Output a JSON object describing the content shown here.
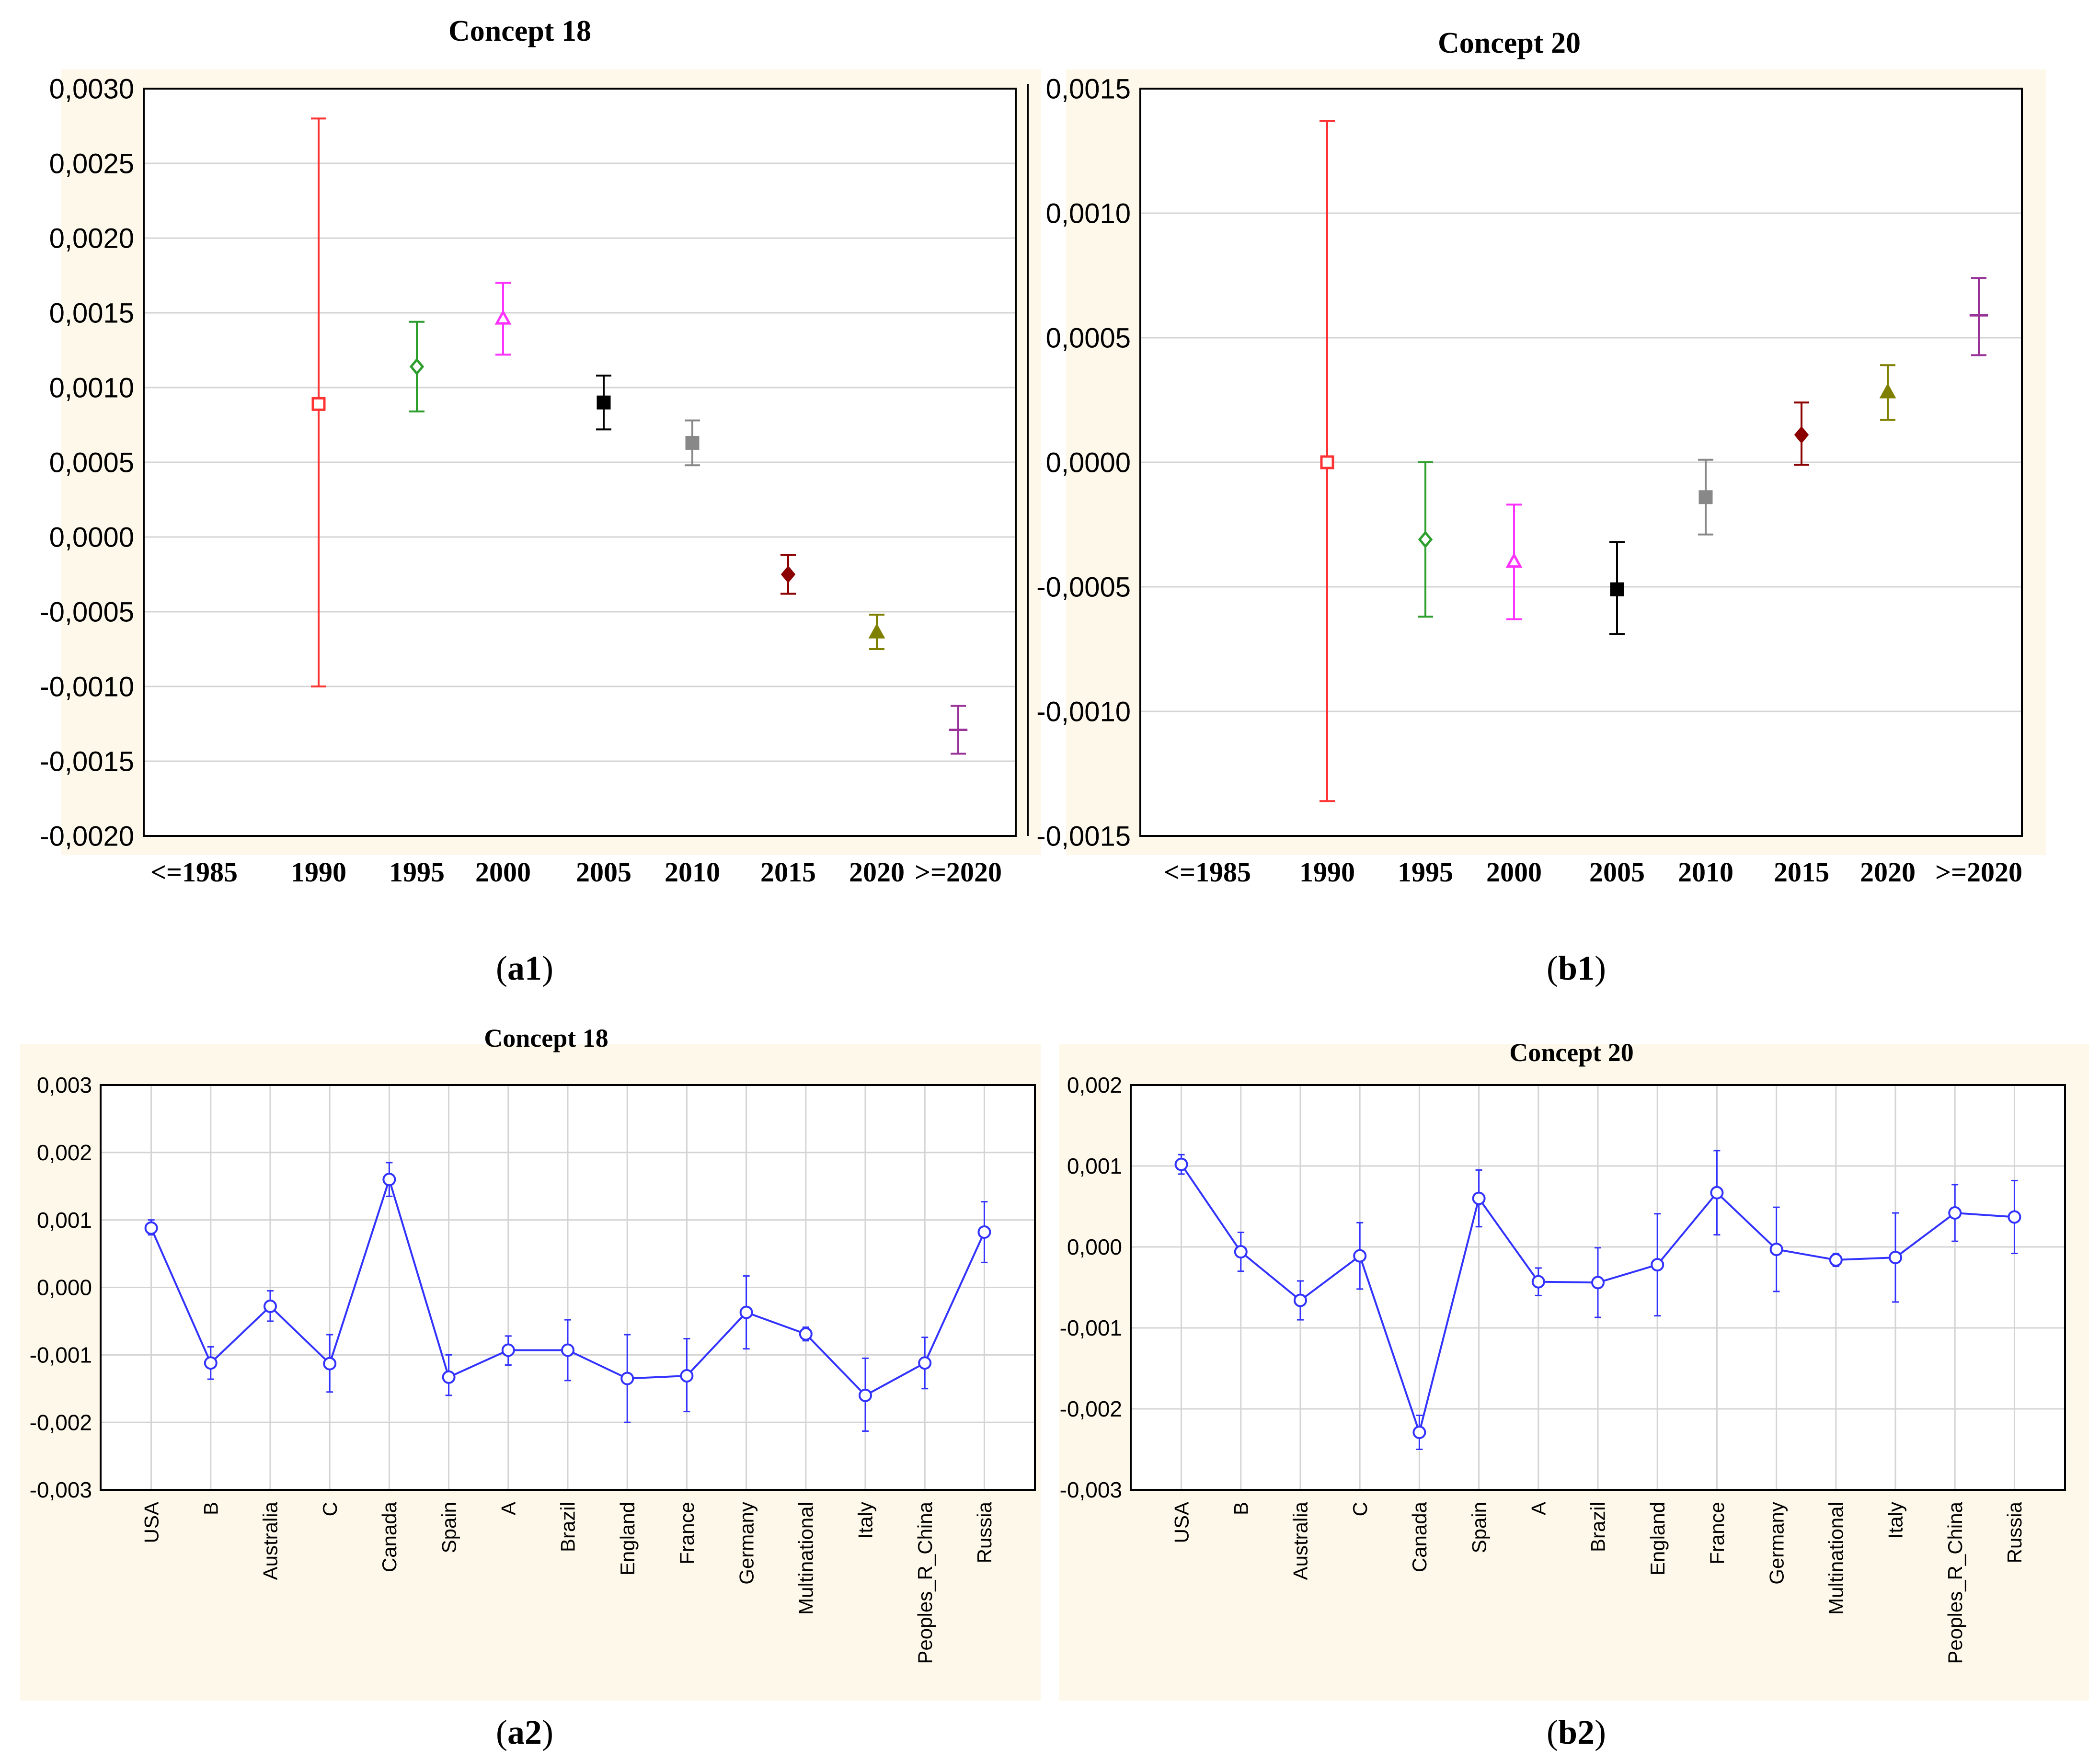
{
  "chart_data": [
    {
      "id": "a1",
      "type": "scatter",
      "title": "Concept 18",
      "caption_prefix": "a",
      "caption_suffix": "1",
      "categories": [
        "<=1985",
        "1990",
        "1995",
        "2000",
        "2005",
        "2010",
        "2015",
        "2020",
        ">=2020"
      ],
      "ylim": [
        -0.002,
        0.003
      ],
      "yticks": [
        "0,0030",
        "0,0025",
        "0,0020",
        "0,0015",
        "0,0010",
        "0,0005",
        "0,0000",
        "-0,0005",
        "-0,0010",
        "-0,0015",
        "-0,0020"
      ],
      "grid": true,
      "points": [
        {
          "category": "1990",
          "mean": 0.00089,
          "lower": -0.001,
          "upper": 0.0028,
          "color": "#ff3333",
          "marker": "open-square"
        },
        {
          "category": "1995",
          "mean": 0.00114,
          "lower": 0.00084,
          "upper": 0.00144,
          "color": "#2e9e2e",
          "marker": "open-diamond"
        },
        {
          "category": "2000",
          "mean": 0.00146,
          "lower": 0.00122,
          "upper": 0.0017,
          "color": "#ff33ff",
          "marker": "open-triangle"
        },
        {
          "category": "2005",
          "mean": 0.0009,
          "lower": 0.00072,
          "upper": 0.00108,
          "color": "#000000",
          "marker": "filled-square"
        },
        {
          "category": "2010",
          "mean": 0.00063,
          "lower": 0.00048,
          "upper": 0.00078,
          "color": "#888888",
          "marker": "filled-square"
        },
        {
          "category": "2015",
          "mean": -0.00025,
          "lower": -0.00038,
          "upper": -0.00012,
          "color": "#8b0000",
          "marker": "filled-diamond"
        },
        {
          "category": "2020",
          "mean": -0.00064,
          "lower": -0.00075,
          "upper": -0.00052,
          "color": "#808000",
          "marker": "filled-triangle"
        },
        {
          "category": ">=2020",
          "mean": -0.00129,
          "lower": -0.00145,
          "upper": -0.00113,
          "color": "#993399",
          "marker": "dash"
        }
      ]
    },
    {
      "id": "b1",
      "type": "scatter",
      "title": "Concept  20",
      "caption_prefix": "b",
      "caption_suffix": "1",
      "categories": [
        "<=1985",
        "1990",
        "1995",
        "2000",
        "2005",
        "2010",
        "2015",
        "2020",
        ">=2020"
      ],
      "ylim": [
        -0.0015,
        0.0015
      ],
      "yticks": [
        "0,0015",
        "0,0010",
        "0,0005",
        "0,0000",
        "-0,0005",
        "-0,0010",
        "-0,0015"
      ],
      "grid": true,
      "points": [
        {
          "category": "1990",
          "mean": 0.0,
          "lower": -0.00136,
          "upper": 0.00137,
          "color": "#ff3333",
          "marker": "open-square"
        },
        {
          "category": "1995",
          "mean": -0.00031,
          "lower": -0.00062,
          "upper": 0.0,
          "color": "#2e9e2e",
          "marker": "open-diamond"
        },
        {
          "category": "2000",
          "mean": -0.0004,
          "lower": -0.00063,
          "upper": -0.00017,
          "color": "#ff33ff",
          "marker": "open-triangle"
        },
        {
          "category": "2005",
          "mean": -0.00051,
          "lower": -0.00069,
          "upper": -0.00032,
          "color": "#000000",
          "marker": "filled-square"
        },
        {
          "category": "2010",
          "mean": -0.00014,
          "lower": -0.00029,
          "upper": 1e-05,
          "color": "#888888",
          "marker": "filled-square"
        },
        {
          "category": "2015",
          "mean": 0.00011,
          "lower": -1e-05,
          "upper": 0.00024,
          "color": "#8b0000",
          "marker": "filled-diamond"
        },
        {
          "category": "2020",
          "mean": 0.00028,
          "lower": 0.00017,
          "upper": 0.00039,
          "color": "#808000",
          "marker": "filled-triangle"
        },
        {
          "category": ">=2020",
          "mean": 0.00059,
          "lower": 0.00043,
          "upper": 0.00074,
          "color": "#993399",
          "marker": "dash"
        }
      ]
    },
    {
      "id": "a2",
      "type": "line",
      "title": "Concept 18",
      "caption_prefix": "a",
      "caption_suffix": "2",
      "categories": [
        "USA",
        "B",
        "Australia",
        "C",
        "Canada",
        "Spain",
        "A",
        "Brazil",
        "England",
        "France",
        "Germany",
        "Multinational",
        "Italy",
        "Peoples_R_China",
        "Russia"
      ],
      "ylim": [
        -0.003,
        0.003
      ],
      "yticks": [
        "0,003",
        "0,002",
        "0,001",
        "0,000",
        "-0,001",
        "-0,002",
        "-0,003"
      ],
      "grid": true,
      "series_color": "#3333ff",
      "means": [
        0.00088,
        -0.00112,
        -0.00028,
        -0.00113,
        0.0016,
        -0.00133,
        -0.00093,
        -0.00093,
        -0.00135,
        -0.00131,
        -0.00037,
        -0.00069,
        -0.0016,
        -0.00112,
        0.00082
      ],
      "lower": [
        0.00078,
        -0.00136,
        -0.0005,
        -0.00155,
        0.00135,
        -0.0016,
        -0.00115,
        -0.00138,
        -0.002,
        -0.00184,
        -0.00091,
        -0.00079,
        -0.00213,
        -0.0015,
        0.00037
      ],
      "upper": [
        0.001,
        -0.00088,
        -5e-05,
        -0.0007,
        0.00185,
        -0.001,
        -0.00072,
        -0.00048,
        -0.0007,
        -0.00076,
        0.00017,
        -0.00059,
        -0.00105,
        -0.00074,
        0.00127
      ]
    },
    {
      "id": "b2",
      "type": "line",
      "title": "Concept 20",
      "caption_prefix": "b",
      "caption_suffix": "2",
      "categories": [
        "USA",
        "B",
        "Australia",
        "C",
        "Canada",
        "Spain",
        "A",
        "Brazil",
        "England",
        "France",
        "Germany",
        "Multinational",
        "Italy",
        "Peoples_R_China",
        "Russia"
      ],
      "ylim": [
        -0.003,
        0.002
      ],
      "yticks": [
        "0,002",
        "0,001",
        "0,000",
        "-0,001",
        "-0,002",
        "-0,003"
      ],
      "grid": true,
      "series_color": "#3333ff",
      "means": [
        0.00102,
        -6e-05,
        -0.00066,
        -0.00011,
        -0.00229,
        0.0006,
        -0.00043,
        -0.00044,
        -0.00022,
        0.00067,
        -3e-05,
        -0.00016,
        -0.00013,
        0.00042,
        0.00037
      ],
      "lower": [
        0.0009,
        -0.0003,
        -0.0009,
        -0.00052,
        -0.0025,
        0.00025,
        -0.0006,
        -0.00087,
        -0.00085,
        0.00015,
        -0.00055,
        -0.00024,
        -0.00068,
        7e-05,
        -8e-05
      ],
      "upper": [
        0.00114,
        0.00018,
        -0.00042,
        0.0003,
        -0.00208,
        0.00095,
        -0.00026,
        -1e-05,
        0.00041,
        0.00119,
        0.00049,
        -8e-05,
        0.00042,
        0.00077,
        0.00082
      ]
    }
  ]
}
